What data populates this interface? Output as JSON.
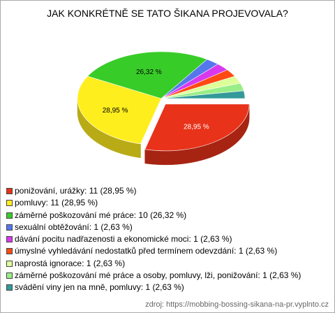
{
  "chart_data": {
    "type": "pie",
    "title": "JAK KONKRÉTNĚ SE TATO ŠIKANA PROJEVOVALA?",
    "categories": [
      "ponižování, urážky: 11 (28,95 %)",
      "pomluvy: 11 (28,95 %)",
      "záměrné poškozování mé práce: 10 (26,32 %)",
      "sexuální obtěžování: 1 (2,63 %)",
      "dávání pocitu nadřazenosti a ekonomické moci: 1 (2,63 %)",
      "úmyslné vyhledávání nedostatků před termínem odevzdání: 1 (2,63 %)",
      "naprostá ignorace: 1 (2,63 %)",
      "záměrné poškozování mé práce a osoby, pomluvy, lži, ponižování: 1 (2,63 %)",
      "svádění viny jen na mně, pomluvy: 1 (2,63 %)"
    ],
    "values": [
      28.95,
      28.95,
      26.32,
      2.63,
      2.63,
      2.63,
      2.63,
      2.63,
      2.63
    ],
    "value_labels": [
      "28,95 %",
      "28,95 %",
      "26,32 %",
      null,
      null,
      null,
      null,
      null,
      null
    ],
    "colors": [
      "#e8321a",
      "#ffee1e",
      "#38cc28",
      "#5577ee",
      "#d838ee",
      "#ff4a14",
      "#ddff99",
      "#99ee88",
      "#339999"
    ],
    "exploded": [
      0
    ],
    "source": "zdroj: https://mobbing-bossing-sikana-na-pr.vyplnto.cz"
  }
}
